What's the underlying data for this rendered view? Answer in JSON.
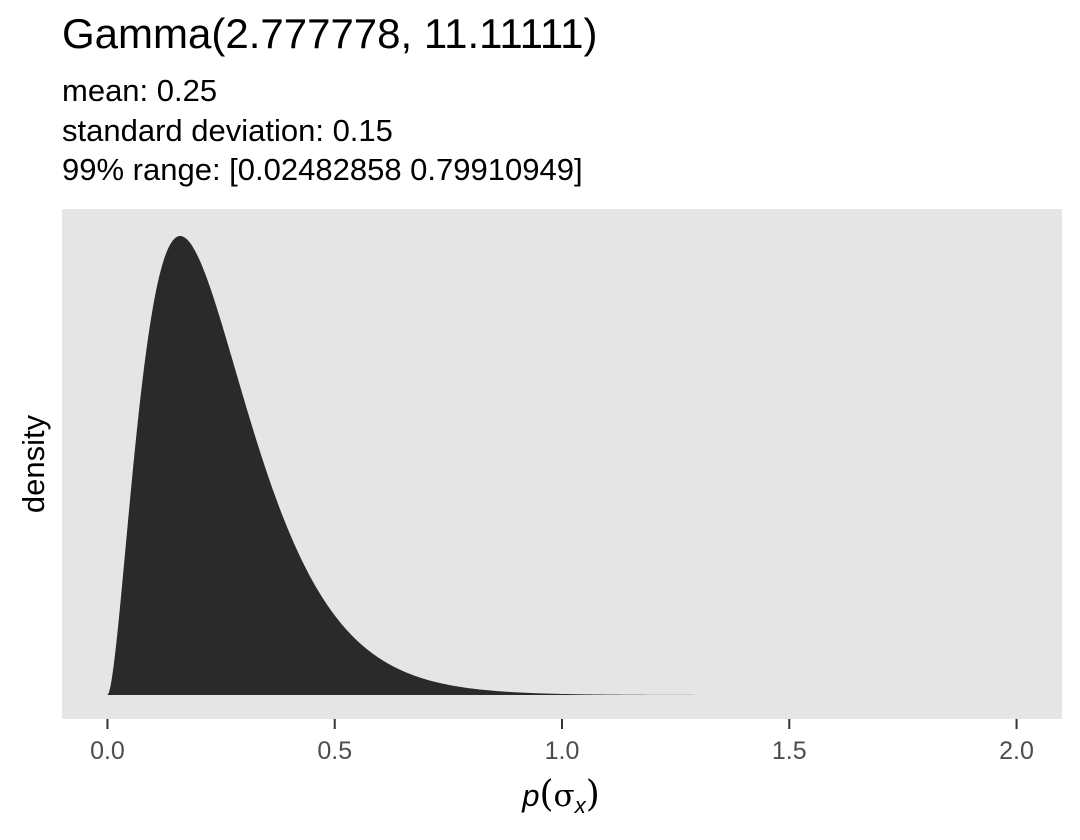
{
  "chart_data": {
    "type": "area",
    "title": "Gamma(2.777778, 11.11111)",
    "subtitle_lines": [
      "mean: 0.25",
      "standard deviation: 0.15",
      "99% range: [0.02482858 0.79910949]"
    ],
    "xlabel_parts": {
      "p": "p",
      "open": "(",
      "sigma": "σ",
      "sub": "x",
      "close": ")"
    },
    "ylabel": "density",
    "distribution": {
      "family": "gamma",
      "shape": 2.777778,
      "rate": 11.11111
    },
    "x_range_drawn": [
      0,
      1.5
    ],
    "xlim": [
      -0.1,
      2.1
    ],
    "x_ticks": [
      0.0,
      0.5,
      1.0,
      1.5,
      2.0
    ],
    "x_tick_labels": [
      "0.0",
      "0.5",
      "1.0",
      "1.5",
      "2.0"
    ],
    "y_ticks_shown": false,
    "grid": false,
    "legend": "none",
    "colors": {
      "panel": "#e5e5e5",
      "fill": "#2a2a2a",
      "tick": "#333333",
      "tick_text": "#4d4d4d"
    }
  }
}
